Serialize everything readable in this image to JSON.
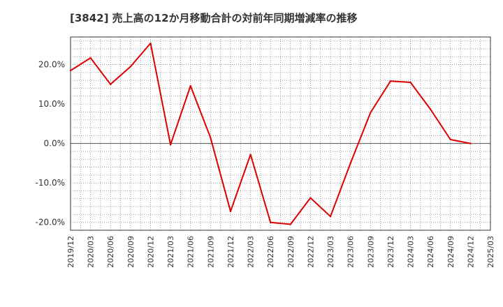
{
  "chart_data": {
    "type": "line",
    "title": "[3842]  売上高の12か月移動合計の対前年同期増減率の推移",
    "xlabel": "",
    "ylabel": "",
    "ylim": [
      -22,
      27
    ],
    "yticks": [
      20,
      10,
      0,
      -10,
      -20
    ],
    "ytick_labels": [
      "20.0%",
      "10.0%",
      "0.0%",
      "-10.0%",
      "-20.0%"
    ],
    "categories": [
      "2019/12",
      "2020/03",
      "2020/06",
      "2020/09",
      "2020/12",
      "2021/03",
      "2021/06",
      "2021/09",
      "2021/12",
      "2022/03",
      "2022/06",
      "2022/09",
      "2022/12",
      "2023/03",
      "2023/06",
      "2023/09",
      "2023/12",
      "2024/03",
      "2024/06",
      "2024/09",
      "2024/12",
      "2025/03"
    ],
    "grid": true,
    "legend": "none",
    "series": [
      {
        "name": "対前年同期増減率",
        "color": "#dd0000",
        "values": [
          18.5,
          21.7,
          15.0,
          19.5,
          25.4,
          -0.3,
          14.6,
          1.5,
          -17.2,
          -2.8,
          -20.0,
          -20.5,
          -13.8,
          -18.5,
          -5.0,
          7.8,
          15.8,
          15.5,
          8.7,
          1.0,
          0.0,
          null
        ]
      }
    ]
  }
}
